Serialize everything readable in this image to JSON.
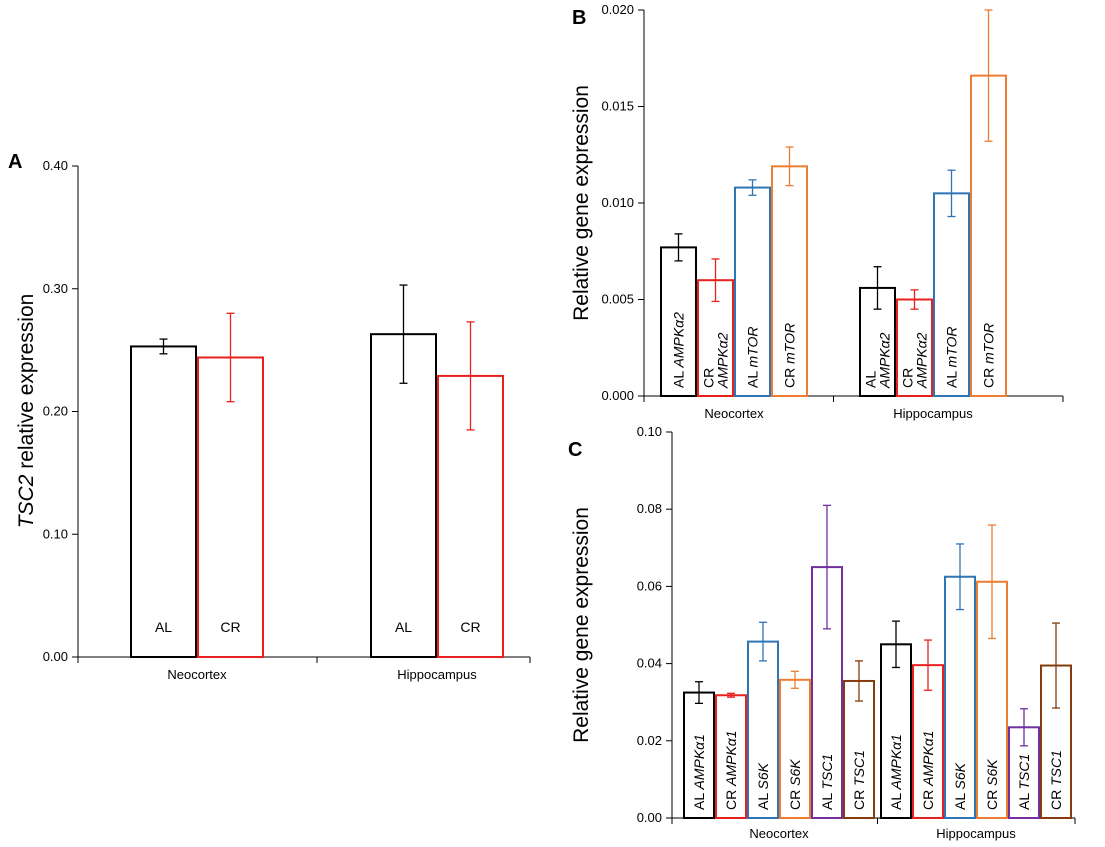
{
  "chart_data": [
    {
      "panel": "A",
      "type": "bar",
      "ylabel_italic": "TSC2",
      "ylabel_rest": " relative expression",
      "ylim": [
        0,
        0.4
      ],
      "ticks": [
        "0.00",
        "0.10",
        "0.20",
        "0.30",
        "0.40"
      ],
      "tick_values": [
        0,
        0.1,
        0.2,
        0.3,
        0.4
      ],
      "groups": [
        {
          "name": "Neocortex",
          "bars": [
            {
              "label": "AL",
              "value": 0.253,
              "err": 0.006,
              "color": "#000000"
            },
            {
              "label": "CR",
              "value": 0.244,
              "err": 0.036,
              "color": "#e8211e"
            }
          ]
        },
        {
          "name": "Hippocampus",
          "bars": [
            {
              "label": "AL",
              "value": 0.263,
              "err": 0.04,
              "color": "#000000"
            },
            {
              "label": "CR",
              "value": 0.229,
              "err": 0.044,
              "color": "#e8211e"
            }
          ]
        }
      ]
    },
    {
      "panel": "B",
      "type": "bar",
      "ylabel": "Relative gene expression",
      "ylim": [
        0,
        0.02
      ],
      "ticks": [
        "0.000",
        "0.005",
        "0.010",
        "0.015",
        "0.020"
      ],
      "tick_values": [
        0,
        0.005,
        0.01,
        0.015,
        0.02
      ],
      "groups": [
        {
          "name": "Neocortex",
          "bars": [
            {
              "lines": [
                {
                  "prefix": "AL ",
                  "gene": "AMPKα2"
                }
              ],
              "value": 0.0077,
              "err": 0.0007,
              "color": "#000000"
            },
            {
              "lines": [
                {
                  "prefix": "CR",
                  "gene": ""
                },
                {
                  "prefix": "",
                  "gene": "AMPKα2"
                }
              ],
              "value": 0.006,
              "err": 0.0011,
              "color": "#e8211e"
            },
            {
              "lines": [
                {
                  "prefix": "AL ",
                  "gene": "mTOR"
                }
              ],
              "value": 0.0108,
              "err": 0.0004,
              "color": "#2e75b6"
            },
            {
              "lines": [
                {
                  "prefix": "CR ",
                  "gene": "mTOR"
                }
              ],
              "value": 0.0119,
              "err": 0.001,
              "color": "#ed7d31"
            }
          ]
        },
        {
          "name": "Hippocampus",
          "bars": [
            {
              "lines": [
                {
                  "prefix": "AL",
                  "gene": ""
                },
                {
                  "prefix": "",
                  "gene": "AMPKα2"
                }
              ],
              "value": 0.0056,
              "err": 0.0011,
              "color": "#000000"
            },
            {
              "lines": [
                {
                  "prefix": "CR",
                  "gene": ""
                },
                {
                  "prefix": "",
                  "gene": "AMPKα2"
                }
              ],
              "value": 0.005,
              "err": 0.0005,
              "color": "#e8211e"
            },
            {
              "lines": [
                {
                  "prefix": "AL ",
                  "gene": "mTOR"
                }
              ],
              "value": 0.0105,
              "err": 0.0012,
              "color": "#2e75b6"
            },
            {
              "lines": [
                {
                  "prefix": "CR ",
                  "gene": "mTOR"
                }
              ],
              "value": 0.0166,
              "err": 0.0034,
              "color": "#ed7d31"
            }
          ]
        }
      ]
    },
    {
      "panel": "C",
      "type": "bar",
      "ylabel": "Relative gene expression",
      "ylim": [
        0,
        0.1
      ],
      "ticks": [
        "0.00",
        "0.02",
        "0.04",
        "0.06",
        "0.08",
        "0.10"
      ],
      "tick_values": [
        0,
        0.02,
        0.04,
        0.06,
        0.08,
        0.1
      ],
      "groups": [
        {
          "name": "Neocortex",
          "bars": [
            {
              "lines": [
                {
                  "prefix": "AL ",
                  "gene": "AMPKα1"
                }
              ],
              "value": 0.0325,
              "err": 0.0028,
              "color": "#000000"
            },
            {
              "lines": [
                {
                  "prefix": "CR ",
                  "gene": "AMPKα1"
                }
              ],
              "value": 0.0318,
              "err": 0.0005,
              "color": "#e8211e"
            },
            {
              "lines": [
                {
                  "prefix": "AL ",
                  "gene": "S6K"
                }
              ],
              "value": 0.0457,
              "err": 0.005,
              "color": "#2e75b6"
            },
            {
              "lines": [
                {
                  "prefix": "CR ",
                  "gene": "S6K"
                }
              ],
              "value": 0.0358,
              "err": 0.0022,
              "color": "#ed7d31"
            },
            {
              "lines": [
                {
                  "prefix": "AL ",
                  "gene": "TSC1"
                }
              ],
              "value": 0.065,
              "err": 0.016,
              "color": "#7030a0"
            },
            {
              "lines": [
                {
                  "prefix": "CR ",
                  "gene": "TSC1"
                }
              ],
              "value": 0.0355,
              "err": 0.0052,
              "color": "#843c0c"
            }
          ]
        },
        {
          "name": "Hippocampus",
          "bars": [
            {
              "lines": [
                {
                  "prefix": "AL ",
                  "gene": "AMPKα1"
                }
              ],
              "value": 0.045,
              "err": 0.006,
              "color": "#000000"
            },
            {
              "lines": [
                {
                  "prefix": "CR ",
                  "gene": "AMPKα1"
                }
              ],
              "value": 0.0396,
              "err": 0.0065,
              "color": "#e8211e"
            },
            {
              "lines": [
                {
                  "prefix": "AL ",
                  "gene": "S6K"
                }
              ],
              "value": 0.0625,
              "err": 0.0085,
              "color": "#2e75b6"
            },
            {
              "lines": [
                {
                  "prefix": "CR ",
                  "gene": "S6K"
                }
              ],
              "value": 0.0612,
              "err": 0.0147,
              "color": "#ed7d31"
            },
            {
              "lines": [
                {
                  "prefix": "AL ",
                  "gene": "TSC1"
                }
              ],
              "value": 0.0235,
              "err": 0.0048,
              "color": "#7030a0"
            },
            {
              "lines": [
                {
                  "prefix": "CR ",
                  "gene": "TSC1"
                }
              ],
              "value": 0.0395,
              "err": 0.011,
              "color": "#843c0c"
            }
          ]
        }
      ]
    }
  ]
}
